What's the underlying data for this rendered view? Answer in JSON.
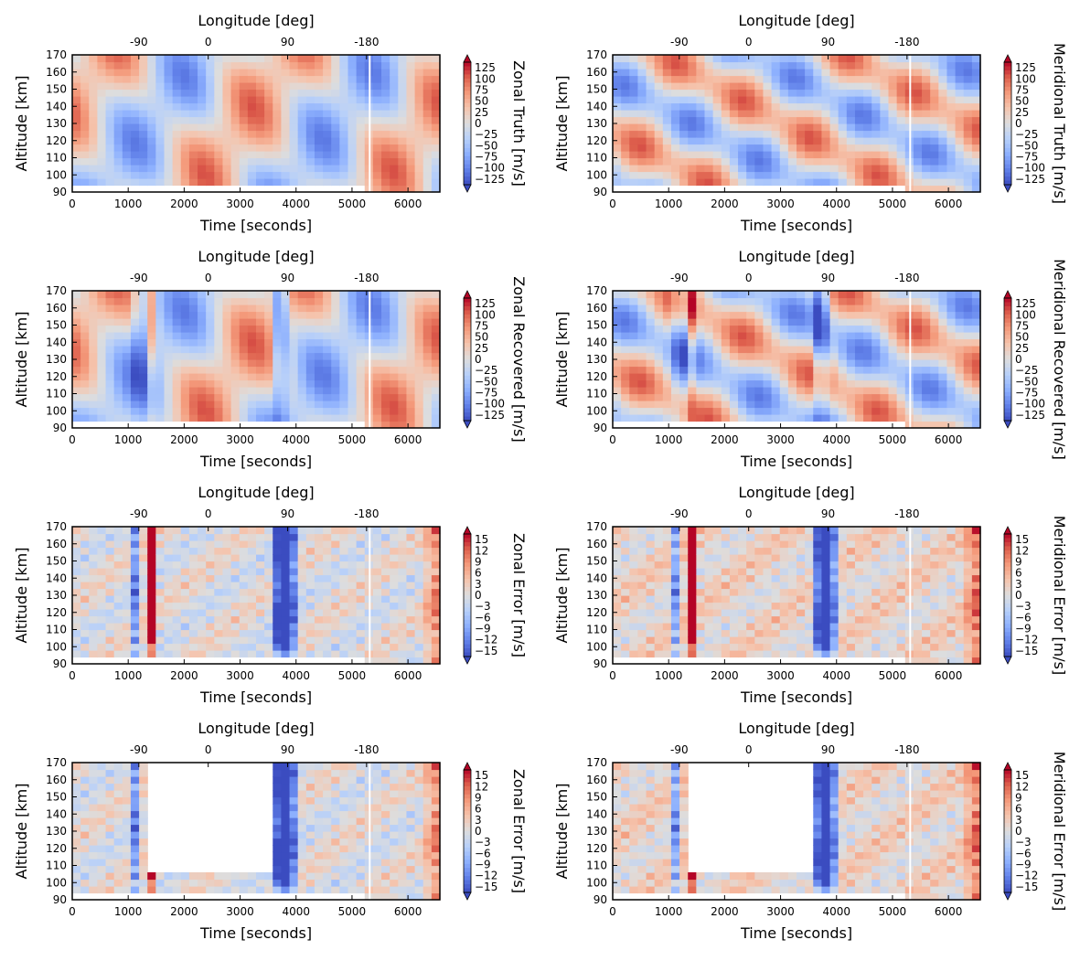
{
  "figure_layout": "4 rows x 2 columns of heatmap panels",
  "chart_data": [
    {
      "type": "heatmap",
      "field": "zonal",
      "kind": "truth",
      "top_xlabel": "Longitude [deg]",
      "top_ticks": [
        "-90",
        "0",
        "90",
        "-180"
      ],
      "top_tick_times": [
        1190,
        2430,
        3850,
        5260
      ],
      "xlabel": "Time [seconds]",
      "ylabel": "Altitude [km]",
      "xticks": [
        0,
        1000,
        2000,
        3000,
        4000,
        5000,
        6000
      ],
      "yticks": [
        90,
        100,
        110,
        120,
        130,
        140,
        150,
        160,
        170
      ],
      "xlim": [
        0,
        6570
      ],
      "ylim": [
        90,
        170
      ],
      "colorbar": {
        "label": "Zonal Truth [m/s]",
        "ticks": [
          "125",
          "100",
          "75",
          "50",
          "25",
          "0",
          "−25",
          "−50",
          "−75",
          "−100",
          "−125"
        ],
        "range": [
          -125,
          125
        ]
      },
      "colormap": "coolwarm"
    },
    {
      "type": "heatmap",
      "field": "meridional",
      "kind": "truth",
      "top_xlabel": "Longitude [deg]",
      "top_ticks": [
        "-90",
        "0",
        "90",
        "-180"
      ],
      "top_tick_times": [
        1190,
        2430,
        3850,
        5260
      ],
      "xlabel": "Time [seconds]",
      "ylabel": "Altitude [km]",
      "xticks": [
        0,
        1000,
        2000,
        3000,
        4000,
        5000,
        6000
      ],
      "yticks": [
        90,
        100,
        110,
        120,
        130,
        140,
        150,
        160,
        170
      ],
      "xlim": [
        0,
        6570
      ],
      "ylim": [
        90,
        170
      ],
      "colorbar": {
        "label": "Meridional Truth [m/s]",
        "ticks": [
          "125",
          "100",
          "75",
          "50",
          "25",
          "0",
          "−25",
          "−50",
          "−75",
          "−100",
          "−125"
        ],
        "range": [
          -125,
          125
        ]
      },
      "colormap": "coolwarm"
    },
    {
      "type": "heatmap",
      "field": "zonal",
      "kind": "recovered",
      "top_xlabel": "Longitude [deg]",
      "top_ticks": [
        "-90",
        "0",
        "90",
        "-180"
      ],
      "top_tick_times": [
        1190,
        2430,
        3850,
        5260
      ],
      "xlabel": "Time [seconds]",
      "ylabel": "Altitude [km]",
      "xticks": [
        0,
        1000,
        2000,
        3000,
        4000,
        5000,
        6000
      ],
      "yticks": [
        90,
        100,
        110,
        120,
        130,
        140,
        150,
        160,
        170
      ],
      "xlim": [
        0,
        6570
      ],
      "ylim": [
        90,
        170
      ],
      "colorbar": {
        "label": "Zonal Recovered [m/s]",
        "ticks": [
          "125",
          "100",
          "75",
          "50",
          "25",
          "0",
          "−25",
          "−50",
          "−75",
          "−100",
          "−125"
        ],
        "range": [
          -125,
          125
        ]
      },
      "colormap": "coolwarm"
    },
    {
      "type": "heatmap",
      "field": "meridional",
      "kind": "recovered",
      "top_xlabel": "Longitude [deg]",
      "top_ticks": [
        "-90",
        "0",
        "90",
        "-180"
      ],
      "top_tick_times": [
        1190,
        2430,
        3850,
        5260
      ],
      "xlabel": "Time [seconds]",
      "ylabel": "Altitude [km]",
      "xticks": [
        0,
        1000,
        2000,
        3000,
        4000,
        5000,
        6000
      ],
      "yticks": [
        90,
        100,
        110,
        120,
        130,
        140,
        150,
        160,
        170
      ],
      "xlim": [
        0,
        6570
      ],
      "ylim": [
        90,
        170
      ],
      "colorbar": {
        "label": "Meridional Recovered [m/s]",
        "ticks": [
          "125",
          "100",
          "75",
          "50",
          "25",
          "0",
          "−25",
          "−50",
          "−75",
          "−100",
          "−125"
        ],
        "range": [
          -125,
          125
        ]
      },
      "colormap": "coolwarm"
    },
    {
      "type": "heatmap",
      "field": "zonal",
      "kind": "error",
      "top_xlabel": "Longitude [deg]",
      "top_ticks": [
        "-90",
        "0",
        "90",
        "-180"
      ],
      "top_tick_times": [
        1190,
        2430,
        3850,
        5260
      ],
      "xlabel": "Time [seconds]",
      "ylabel": "Altitude [km]",
      "xticks": [
        0,
        1000,
        2000,
        3000,
        4000,
        5000,
        6000
      ],
      "yticks": [
        90,
        100,
        110,
        120,
        130,
        140,
        150,
        160,
        170
      ],
      "xlim": [
        0,
        6570
      ],
      "ylim": [
        90,
        170
      ],
      "colorbar": {
        "label": "Zonal Error [m/s]",
        "ticks": [
          "15",
          "12",
          "9",
          "6",
          "3",
          "0",
          "−3",
          "−6",
          "−9",
          "−12",
          "−15"
        ],
        "range": [
          -15,
          15
        ]
      },
      "colormap": "coolwarm"
    },
    {
      "type": "heatmap",
      "field": "meridional",
      "kind": "error",
      "top_xlabel": "Longitude [deg]",
      "top_ticks": [
        "-90",
        "0",
        "90",
        "-180"
      ],
      "top_tick_times": [
        1190,
        2430,
        3850,
        5260
      ],
      "xlabel": "Time [seconds]",
      "ylabel": "Altitude [km]",
      "xticks": [
        0,
        1000,
        2000,
        3000,
        4000,
        5000,
        6000
      ],
      "yticks": [
        90,
        100,
        110,
        120,
        130,
        140,
        150,
        160,
        170
      ],
      "xlim": [
        0,
        6570
      ],
      "ylim": [
        90,
        170
      ],
      "colorbar": {
        "label": "Meridional Error [m/s]",
        "ticks": [
          "15",
          "12",
          "9",
          "6",
          "3",
          "0",
          "−3",
          "−6",
          "−9",
          "−12",
          "−15"
        ],
        "range": [
          -15,
          15
        ]
      },
      "colormap": "coolwarm"
    },
    {
      "type": "heatmap",
      "field": "zonal",
      "kind": "error_masked",
      "masked_region": {
        "time": [
          1400,
          3550
        ],
        "altitude_min": 107
      },
      "top_xlabel": "Longitude [deg]",
      "top_ticks": [
        "-90",
        "0",
        "90",
        "-180"
      ],
      "top_tick_times": [
        1190,
        2430,
        3850,
        5260
      ],
      "xlabel": "Time [seconds]",
      "ylabel": "Altitude [km]",
      "xticks": [
        0,
        1000,
        2000,
        3000,
        4000,
        5000,
        6000
      ],
      "yticks": [
        90,
        100,
        110,
        120,
        130,
        140,
        150,
        160,
        170
      ],
      "xlim": [
        0,
        6570
      ],
      "ylim": [
        90,
        170
      ],
      "colorbar": {
        "label": "Zonal Error [m/s]",
        "ticks": [
          "15",
          "12",
          "9",
          "6",
          "3",
          "0",
          "−3",
          "−6",
          "−9",
          "−12",
          "−15"
        ],
        "range": [
          -15,
          15
        ]
      },
      "colormap": "coolwarm"
    },
    {
      "type": "heatmap",
      "field": "meridional",
      "kind": "error_masked",
      "masked_region": {
        "time": [
          1350,
          3550
        ],
        "altitude_min": 107
      },
      "top_xlabel": "Longitude [deg]",
      "top_ticks": [
        "-90",
        "0",
        "90",
        "-180"
      ],
      "top_tick_times": [
        1190,
        2430,
        3850,
        5260
      ],
      "xlabel": "Time [seconds]",
      "ylabel": "Altitude [km]",
      "xticks": [
        0,
        1000,
        2000,
        3000,
        4000,
        5000,
        6000
      ],
      "yticks": [
        90,
        100,
        110,
        120,
        130,
        140,
        150,
        160,
        170
      ],
      "xlim": [
        0,
        6570
      ],
      "ylim": [
        90,
        170
      ],
      "colorbar": {
        "label": "Meridional Error [m/s]",
        "ticks": [
          "15",
          "12",
          "9",
          "6",
          "3",
          "0",
          "−3",
          "−6",
          "−9",
          "−12",
          "−15"
        ],
        "range": [
          -15,
          15
        ]
      },
      "colormap": "coolwarm"
    }
  ]
}
